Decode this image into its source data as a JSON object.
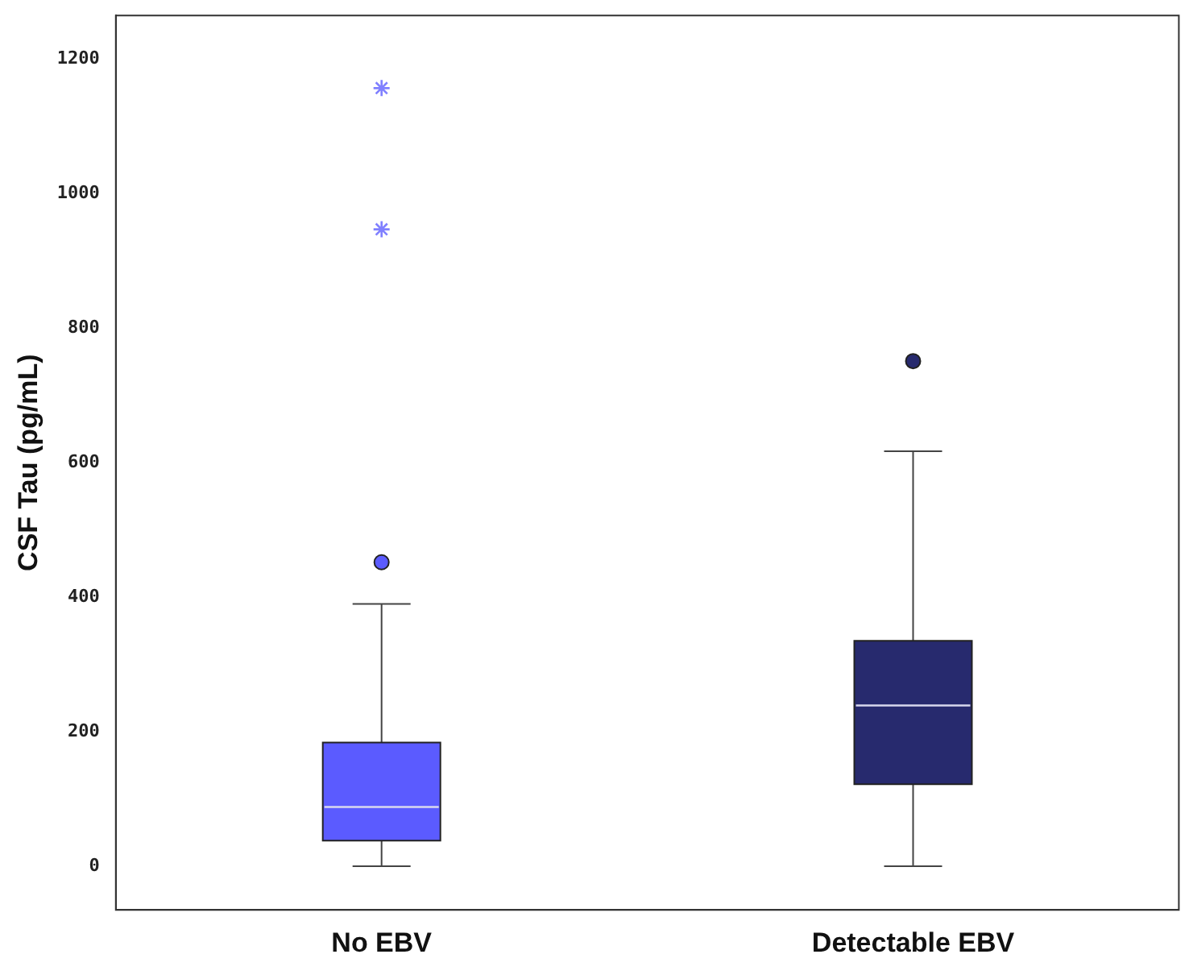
{
  "chart_data": {
    "type": "box",
    "ylabel": "CSF Tau (pg/mL)",
    "categories": [
      "No EBV",
      "Detectable EBV"
    ],
    "colors": [
      "#5b5bff",
      "#272a6e"
    ],
    "boxes": [
      {
        "low": 0,
        "q1": 38,
        "median": 88,
        "q3": 184,
        "high": 390,
        "outliers": [
          452
        ]
      },
      {
        "low": 0,
        "q1": 122,
        "median": 239,
        "q3": 335,
        "high": 617,
        "outliers": [
          751
        ]
      }
    ],
    "series": [
      {
        "type": "scatter",
        "x": [
          "No EBV",
          "No EBV"
        ],
        "values": [
          1157,
          947
        ],
        "color": "#8080ff",
        "marker": "cross"
      }
    ],
    "ylim": [
      -65,
      1265
    ],
    "yticks": [
      0,
      200,
      400,
      600,
      800,
      1000,
      1200
    ]
  }
}
